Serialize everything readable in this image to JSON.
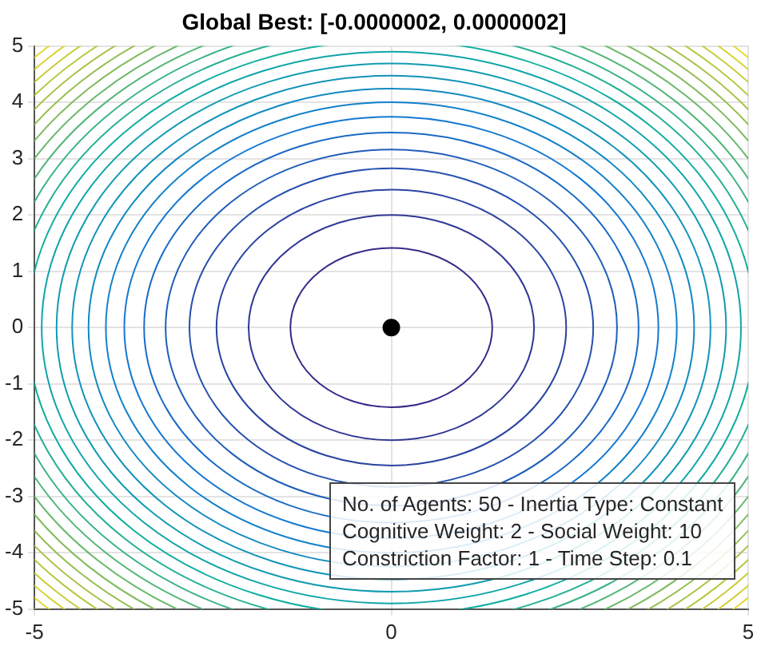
{
  "chart_data": {
    "type": "scatter",
    "title": "Global Best: [-0.0000002, 0.0000002]",
    "x": [
      0
    ],
    "values": [
      0
    ],
    "color": "#000000",
    "marker": "circle",
    "xlim": [
      -5,
      5
    ],
    "ylim": [
      -5,
      5
    ],
    "xticks": [
      -5,
      0,
      5
    ],
    "yticks": [
      -5,
      -4,
      -3,
      -2,
      -1,
      0,
      1,
      2,
      3,
      4,
      5
    ],
    "grid": true,
    "annotations": [
      "No. of Agents: 50 - Inertia Type: Constant",
      "Cognitive Weight: 2 - Social Weight: 10",
      "Constriction Factor: 1 - Time Step: 0.1"
    ]
  }
}
